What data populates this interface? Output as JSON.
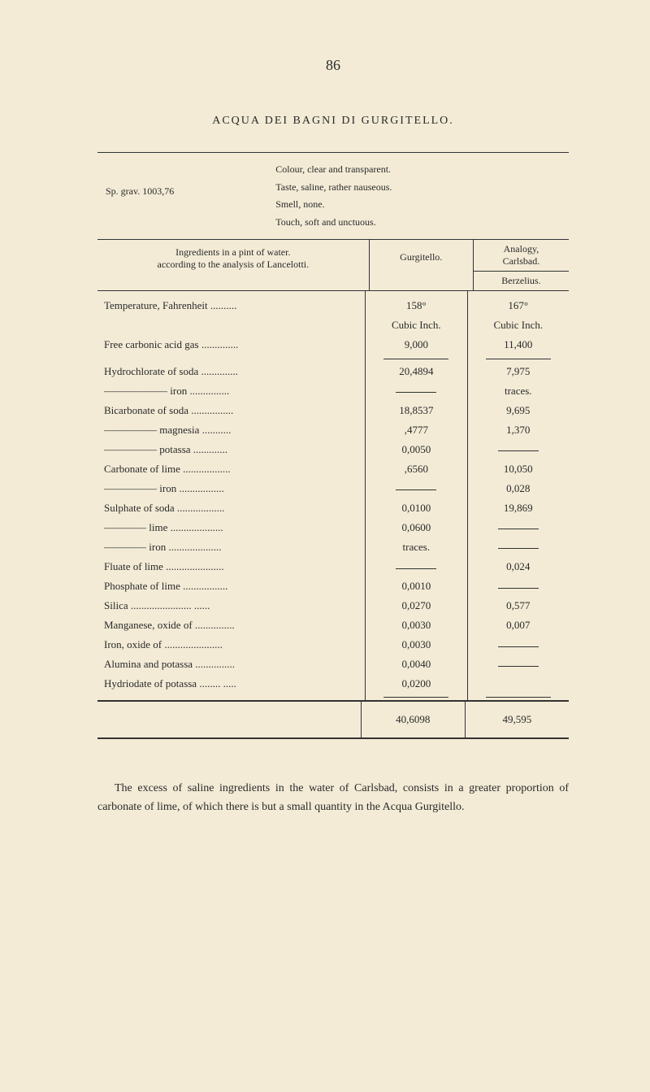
{
  "page_number": "86",
  "title": "ACQUA DEI BAGNI DI GURGITELLO.",
  "header": {
    "sp_grav": "Sp. grav. 1003,76",
    "colour": "Colour, clear and transparent.",
    "taste": "Taste, saline, rather nauseous.",
    "smell": "Smell, none.",
    "touch": "Touch, soft and unctuous."
  },
  "col_headers": {
    "ingredients": "Ingredients in a pint of water.",
    "according": "according to the analysis of Lancelotti.",
    "gurgitello": "Gurgitello.",
    "analogy": "Analogy,",
    "carlsbad": "Carlsbad.",
    "berzelius": "Berzelius."
  },
  "rows": [
    {
      "label": "Temperature, Fahrenheit ..........",
      "v1": "158°",
      "v2": "167°"
    },
    {
      "label": "",
      "v1": "Cubic Inch.",
      "v2": "Cubic Inch."
    },
    {
      "label": "Free carbonic acid gas ..............",
      "v1": "9,000",
      "v2": "11,400"
    },
    {
      "separator": true
    },
    {
      "label": "Hydrochlorate of soda ..............",
      "v1": "20,4894",
      "v2": "7,975"
    },
    {
      "label": "—————— iron ...............",
      "v1": "——",
      "v2": "traces."
    },
    {
      "label": "Bicarbonate of soda ................",
      "v1": "18,8537",
      "v2": "9,695"
    },
    {
      "label": "————— magnesia ...........",
      "v1": ",4777",
      "v2": "1,370"
    },
    {
      "label": "————— potassa .............",
      "v1": "0,0050",
      "v2": "——"
    },
    {
      "label": "Carbonate of lime ..................",
      "v1": ",6560",
      "v2": "10,050"
    },
    {
      "label": "————— iron .................",
      "v1": "——",
      "v2": "0,028"
    },
    {
      "label": "Sulphate of soda ..................",
      "v1": "0,0100",
      "v2": "19,869"
    },
    {
      "label": "———— lime ....................",
      "v1": "0,0600",
      "v2": "——"
    },
    {
      "label": "———— iron ....................",
      "v1": "traces.",
      "v2": "——"
    },
    {
      "label": "Fluate of lime ......................",
      "v1": "——",
      "v2": "0,024"
    },
    {
      "label": "Phosphate of lime .................",
      "v1": "0,0010",
      "v2": "——"
    },
    {
      "label": "Silica ....................... ......",
      "v1": "0,0270",
      "v2": "0,577"
    },
    {
      "label": "Manganese, oxide of ...............",
      "v1": "0,0030",
      "v2": "0,007"
    },
    {
      "label": "Iron, oxide of ......................",
      "v1": "0,0030",
      "v2": "——"
    },
    {
      "label": "Alumina and potassa ...............",
      "v1": "0,0040",
      "v2": "——"
    },
    {
      "label": "Hydriodate of potassa ........ .....",
      "v1": "0,0200",
      "v2": ""
    },
    {
      "separator": true
    }
  ],
  "totals": {
    "v1": "40,6098",
    "v2": "49,595"
  },
  "body_text": "The excess of saline ingredients in the water of Carlsbad, consists in a greater proportion of carbonate of lime, of which there is but a small quantity in the Acqua Gurgitello."
}
